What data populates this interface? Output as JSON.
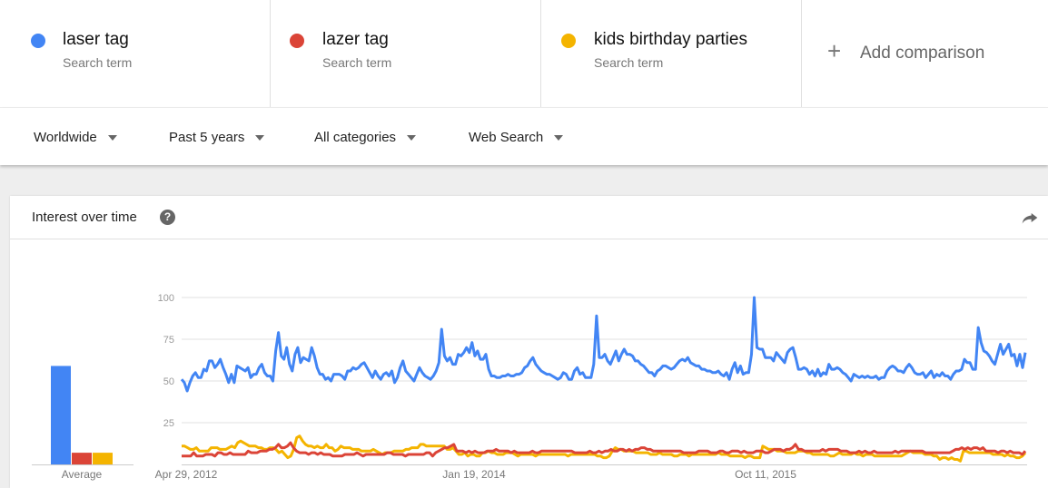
{
  "terms": [
    {
      "name": "laser tag",
      "type": "Search term",
      "color": "#4285f4"
    },
    {
      "name": "lazer tag",
      "type": "Search term",
      "color": "#db4437"
    },
    {
      "name": "kids birthday parties",
      "type": "Search term",
      "color": "#f4b400"
    }
  ],
  "add_comparison": {
    "icon": "+",
    "label": "Add comparison"
  },
  "filters": {
    "region": "Worldwide",
    "time": "Past 5 years",
    "category": "All categories",
    "search_type": "Web Search"
  },
  "card": {
    "title": "Interest over time",
    "help_icon": "?"
  },
  "chart_data": [
    {
      "type": "bar",
      "title": "Average",
      "categories": [
        "laser tag",
        "lazer tag",
        "kids birthday parties"
      ],
      "values": [
        59,
        7,
        7
      ],
      "colors": [
        "#4285f4",
        "#db4437",
        "#f4b400"
      ],
      "xlabel": "Average",
      "ylim": [
        0,
        100
      ]
    },
    {
      "type": "line",
      "title": "Interest over time",
      "x_tick_labels": [
        "Apr 29, 2012",
        "Jan 19, 2014",
        "Oct 11, 2015"
      ],
      "y_ticks": [
        25,
        50,
        75,
        100
      ],
      "ylim": [
        0,
        100
      ],
      "grid": true,
      "legend": false,
      "x_range": [
        "Apr 29, 2012",
        "Apr 2017"
      ],
      "series": [
        {
          "name": "laser tag",
          "color": "#4285f4",
          "values": [
            51,
            49,
            44,
            49,
            53,
            55,
            52,
            52,
            57,
            56,
            62,
            62,
            58,
            60,
            63,
            58,
            54,
            49,
            54,
            49,
            59,
            58,
            57,
            56,
            58,
            52,
            54,
            54,
            58,
            60,
            55,
            53,
            53,
            50,
            68,
            79,
            65,
            63,
            70,
            60,
            56,
            66,
            70,
            61,
            64,
            63,
            62,
            70,
            65,
            58,
            54,
            54,
            51,
            52,
            50,
            54,
            54,
            54,
            53,
            51,
            56,
            56,
            58,
            57,
            58,
            60,
            61,
            58,
            55,
            52,
            56,
            53,
            51,
            54,
            55,
            53,
            56,
            49,
            52,
            58,
            62,
            56,
            54,
            52,
            50,
            54,
            58,
            55,
            53,
            52,
            51,
            53,
            56,
            61,
            81,
            65,
            62,
            64,
            60,
            60,
            66,
            65,
            67,
            70,
            67,
            73,
            65,
            68,
            63,
            63,
            66,
            57,
            53,
            53,
            52,
            52,
            53,
            53,
            54,
            53,
            53,
            54,
            54,
            55,
            58,
            59,
            62,
            64,
            60,
            58,
            56,
            55,
            54,
            54,
            53,
            52,
            51,
            52,
            55,
            54,
            51,
            51,
            56,
            58,
            54,
            55,
            52,
            52,
            52,
            60,
            89,
            64,
            64,
            66,
            62,
            60,
            64,
            68,
            62,
            66,
            69,
            66,
            66,
            65,
            62,
            62,
            60,
            59,
            57,
            55,
            55,
            53,
            56,
            57,
            59,
            59,
            58,
            57,
            58,
            60,
            62,
            63,
            62,
            64,
            61,
            60,
            59,
            59,
            57,
            57,
            56,
            56,
            55,
            55,
            56,
            54,
            53,
            55,
            51,
            57,
            61,
            55,
            59,
            54,
            55,
            55,
            66,
            100,
            70,
            69,
            69,
            64,
            64,
            64,
            62,
            67,
            65,
            63,
            61,
            67,
            69,
            70,
            64,
            57,
            57,
            58,
            57,
            54,
            56,
            53,
            57,
            53,
            55,
            54,
            60,
            57,
            57,
            58,
            57,
            55,
            54,
            52,
            50,
            54,
            53,
            52,
            53,
            52,
            53,
            52,
            52,
            53,
            51,
            52,
            52,
            56,
            58,
            59,
            58,
            56,
            56,
            55,
            58,
            60,
            58,
            55,
            54,
            54,
            55,
            52,
            54,
            56,
            52,
            54,
            53,
            55,
            53,
            53,
            51,
            54,
            56,
            56,
            57,
            63,
            61,
            61,
            57,
            57,
            82,
            73,
            68,
            67,
            65,
            62,
            60,
            66,
            72,
            66,
            69,
            72,
            65,
            66,
            59,
            66,
            58,
            67
          ]
        },
        {
          "name": "lazer tag",
          "color": "#db4437",
          "values": [
            5,
            5,
            5,
            5,
            7,
            5,
            5,
            5,
            6,
            6,
            6,
            5,
            7,
            7,
            6,
            6,
            7,
            6,
            6,
            6,
            6,
            6,
            8,
            7,
            7,
            7,
            8,
            8,
            8,
            9,
            9,
            10,
            12,
            10,
            10,
            11,
            13,
            10,
            8,
            7,
            7,
            7,
            6,
            7,
            7,
            6,
            7,
            6,
            6,
            6,
            5,
            5,
            5,
            5,
            6,
            6,
            6,
            6,
            7,
            6,
            5,
            6,
            6,
            6,
            6,
            6,
            6,
            6,
            7,
            7,
            6,
            6,
            6,
            6,
            5,
            6,
            6,
            6,
            6,
            6,
            6,
            7,
            7,
            5,
            7,
            8,
            9,
            10,
            10,
            11,
            12,
            8,
            8,
            8,
            7,
            8,
            7,
            8,
            7,
            7,
            7,
            8,
            8,
            8,
            9,
            8,
            8,
            8,
            8,
            7,
            8,
            7,
            7,
            7,
            7,
            7,
            8,
            7,
            7,
            8,
            8,
            8,
            8,
            8,
            8,
            8,
            8,
            8,
            8,
            8,
            7,
            7,
            7,
            7,
            7,
            8,
            7,
            7,
            8,
            7,
            8,
            8,
            9,
            8,
            8,
            9,
            9,
            8,
            9,
            8,
            9,
            9,
            10,
            10,
            9,
            9,
            8,
            8,
            8,
            8,
            8,
            8,
            8,
            8,
            8,
            8,
            7,
            7,
            7,
            7,
            7,
            8,
            8,
            8,
            8,
            7,
            7,
            7,
            8,
            8,
            7,
            7,
            8,
            8,
            8,
            7,
            8,
            7,
            7,
            7,
            8,
            8,
            8,
            7,
            7,
            8,
            9,
            9,
            9,
            8,
            9,
            9,
            10,
            12,
            9,
            9,
            8,
            8,
            8,
            8,
            8,
            8,
            9,
            8,
            9,
            9,
            9,
            9,
            8,
            8,
            8,
            7,
            7,
            7,
            8,
            7,
            8,
            7,
            7,
            8,
            7,
            7,
            7,
            7,
            7,
            7,
            8,
            7,
            8,
            8,
            8,
            8,
            8,
            8,
            8,
            8,
            7,
            7,
            7,
            7,
            7,
            7,
            7,
            7,
            7,
            8,
            9,
            9,
            10,
            9,
            10,
            9,
            10,
            10,
            9,
            10,
            8,
            8,
            8,
            8,
            7,
            8,
            8,
            7,
            8,
            7,
            7,
            7,
            6,
            8
          ]
        },
        {
          "name": "kids birthday parties",
          "color": "#f4b400",
          "values": [
            11,
            11,
            10,
            9,
            9,
            10,
            8,
            8,
            8,
            8,
            10,
            10,
            10,
            9,
            9,
            9,
            10,
            11,
            10,
            13,
            14,
            13,
            12,
            11,
            11,
            11,
            10,
            10,
            9,
            9,
            10,
            10,
            9,
            7,
            8,
            6,
            4,
            5,
            9,
            16,
            17,
            14,
            12,
            11,
            11,
            10,
            11,
            10,
            10,
            12,
            10,
            10,
            8,
            9,
            11,
            10,
            10,
            10,
            9,
            9,
            9,
            8,
            8,
            8,
            8,
            9,
            8,
            7,
            6,
            7,
            7,
            7,
            8,
            8,
            8,
            8,
            9,
            9,
            10,
            10,
            10,
            12,
            12,
            11,
            11,
            11,
            11,
            11,
            11,
            11,
            9,
            9,
            10,
            8,
            6,
            6,
            7,
            5,
            6,
            6,
            5,
            5,
            7,
            7,
            8,
            7,
            7,
            6,
            6,
            6,
            7,
            7,
            7,
            6,
            5,
            6,
            6,
            6,
            6,
            6,
            5,
            6,
            6,
            6,
            6,
            6,
            6,
            6,
            6,
            6,
            6,
            5,
            6,
            6,
            6,
            6,
            6,
            6,
            6,
            6,
            6,
            5,
            5,
            4,
            4,
            5,
            8,
            10,
            9,
            9,
            8,
            8,
            8,
            8,
            7,
            7,
            7,
            7,
            7,
            6,
            6,
            6,
            7,
            6,
            6,
            6,
            6,
            5,
            5,
            6,
            6,
            6,
            5,
            6,
            6,
            6,
            6,
            6,
            6,
            6,
            6,
            6,
            7,
            6,
            6,
            6,
            5,
            5,
            5,
            5,
            5,
            4,
            5,
            5,
            4,
            4,
            4,
            11,
            10,
            9,
            9,
            9,
            8,
            8,
            8,
            7,
            7,
            7,
            7,
            8,
            8,
            8,
            7,
            7,
            6,
            6,
            6,
            6,
            6,
            6,
            5,
            5,
            6,
            7,
            6,
            6,
            6,
            6,
            7,
            6,
            6,
            5,
            6,
            6,
            6,
            5,
            5,
            5,
            5,
            5,
            5,
            5,
            5,
            5,
            5,
            6,
            7,
            8,
            7,
            7,
            7,
            7,
            6,
            6,
            6,
            5,
            5,
            3,
            4,
            4,
            3,
            4,
            3,
            3,
            2,
            8,
            8,
            7,
            7,
            7,
            7,
            7,
            7,
            7,
            7,
            6,
            6,
            6,
            6,
            5,
            6,
            5,
            5,
            4,
            4,
            5,
            7
          ]
        }
      ]
    }
  ]
}
